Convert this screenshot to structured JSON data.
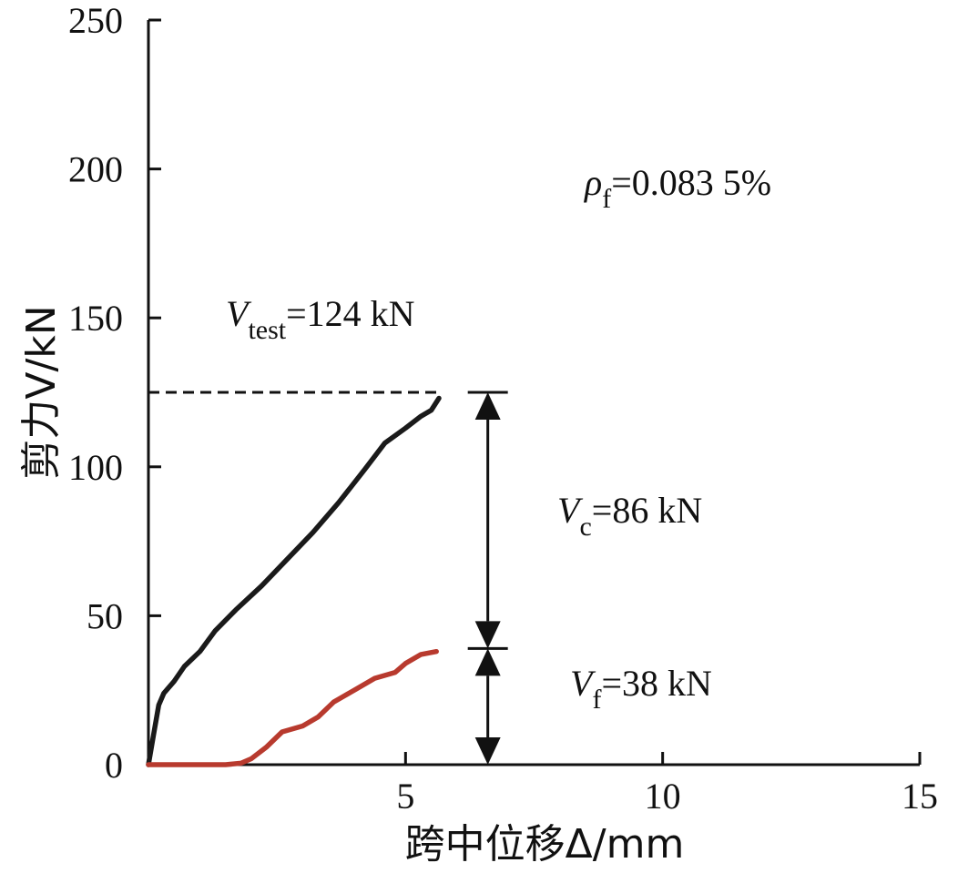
{
  "chart_data": {
    "type": "line",
    "xlabel": "跨中位移Δ/mm",
    "ylabel": "剪力V/kN",
    "xlim": [
      0,
      15
    ],
    "ylim": [
      0,
      250
    ],
    "x_ticks": [
      "5",
      "10",
      "15"
    ],
    "y_ticks": [
      "0",
      "50",
      "100",
      "150",
      "200",
      "250"
    ],
    "series": [
      {
        "color": "#1a1a1a",
        "x": [
          0,
          0.1,
          0.2,
          0.3,
          0.5,
          0.7,
          1.0,
          1.3,
          1.7,
          2.2,
          2.7,
          3.2,
          3.7,
          4.2,
          4.6,
          5.0,
          5.3,
          5.5,
          5.65
        ],
        "y": [
          0,
          10,
          20,
          24,
          28,
          33,
          38,
          45,
          52,
          60,
          69,
          78,
          88,
          99,
          108,
          113,
          117,
          119,
          123
        ]
      },
      {
        "color": "#b83a2e",
        "x": [
          0,
          0.5,
          1.0,
          1.5,
          1.8,
          2.0,
          2.3,
          2.6,
          3.0,
          3.3,
          3.6,
          4.0,
          4.4,
          4.8,
          5.0,
          5.3,
          5.6
        ],
        "y": [
          0,
          0,
          0,
          0,
          0.5,
          2,
          6,
          11,
          13,
          16,
          21,
          25,
          29,
          31,
          34,
          37,
          38
        ]
      }
    ],
    "reference_line": {
      "y": 125,
      "style": "dashed"
    },
    "dimension_arrows": [
      {
        "x": 6.6,
        "y_from": 125,
        "y_to": 39
      },
      {
        "x": 6.6,
        "y_from": 39,
        "y_to": 0
      }
    ],
    "annotations": {
      "rho": {
        "main": "ρ",
        "sub": "f",
        "rest": "=0.083 5%"
      },
      "vtest": {
        "main": "V",
        "sub": "test",
        "rest": "=124 kN"
      },
      "vc": {
        "main": "V",
        "sub": "c",
        "rest": "=86 kN"
      },
      "vf": {
        "main": "V",
        "sub": "f",
        "rest": "=38 kN"
      }
    }
  }
}
